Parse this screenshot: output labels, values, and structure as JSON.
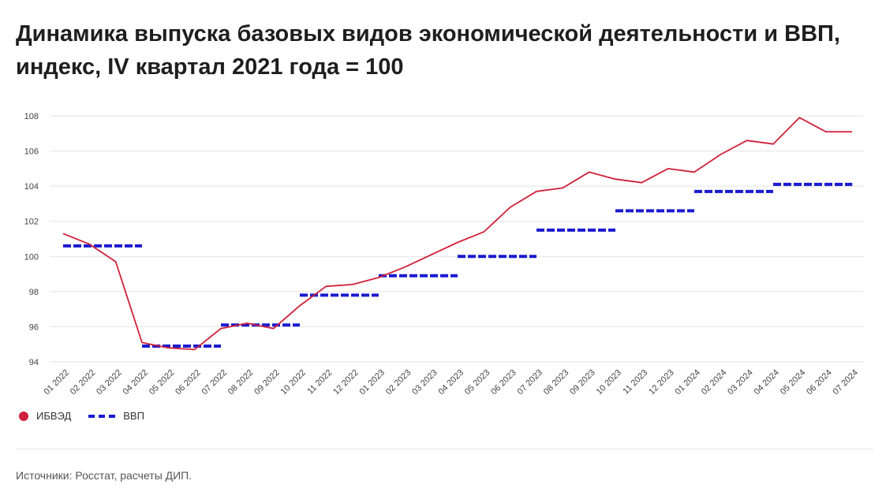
{
  "title_line1": "Динамика выпуска базовых видов экономической деятельности и ВВП,",
  "title_line2": "индекс, IV квартал 2021 года = 100",
  "source": "Источники: Росстат, расчеты ДИП.",
  "legend": [
    {
      "name": "ИБВЭД",
      "color": "#d0203a",
      "marker": "dot"
    },
    {
      "name": "ВВП",
      "color": "#1a1ad0",
      "marker": "dash"
    }
  ],
  "chart_data": {
    "type": "line",
    "ylim": [
      94,
      108
    ],
    "yticks": [
      94,
      96,
      98,
      100,
      102,
      104,
      106,
      108
    ],
    "grid": true,
    "legend_position": "bottom-left",
    "categories": [
      "01 2022",
      "02 2022",
      "03 2022",
      "04 2022",
      "05 2022",
      "06 2022",
      "07 2022",
      "08 2022",
      "09 2022",
      "10 2022",
      "11 2022",
      "12 2022",
      "01 2023",
      "02 2023",
      "03 2023",
      "04 2023",
      "05 2023",
      "06 2023",
      "07 2023",
      "08 2023",
      "09 2023",
      "10 2023",
      "11 2023",
      "12 2023",
      "01 2024",
      "02 2024",
      "03 2024",
      "04 2024",
      "05 2024",
      "06 2024",
      "07 2024"
    ],
    "series": [
      {
        "name": "ИБВЭД",
        "color": "#d0203a",
        "style": "solid",
        "values": [
          101.3,
          100.7,
          99.7,
          95.1,
          94.8,
          94.7,
          95.9,
          96.2,
          95.9,
          97.2,
          98.3,
          98.4,
          98.8,
          99.4,
          100.1,
          100.8,
          101.4,
          102.8,
          103.7,
          103.9,
          104.8,
          104.4,
          104.2,
          105.0,
          104.8,
          105.8,
          106.6,
          106.4,
          107.9,
          107.1,
          107.1
        ]
      },
      {
        "name": "ВВП",
        "color": "#1a1ad0",
        "style": "dashed-step",
        "values": [
          100.6,
          100.6,
          100.6,
          94.9,
          94.9,
          94.9,
          96.1,
          96.1,
          96.1,
          97.8,
          97.8,
          97.8,
          98.9,
          98.9,
          98.9,
          100.0,
          100.0,
          100.0,
          101.5,
          101.5,
          101.5,
          102.6,
          102.6,
          102.6,
          103.7,
          103.7,
          103.7,
          104.1,
          104.1,
          104.1,
          104.1
        ]
      }
    ]
  }
}
